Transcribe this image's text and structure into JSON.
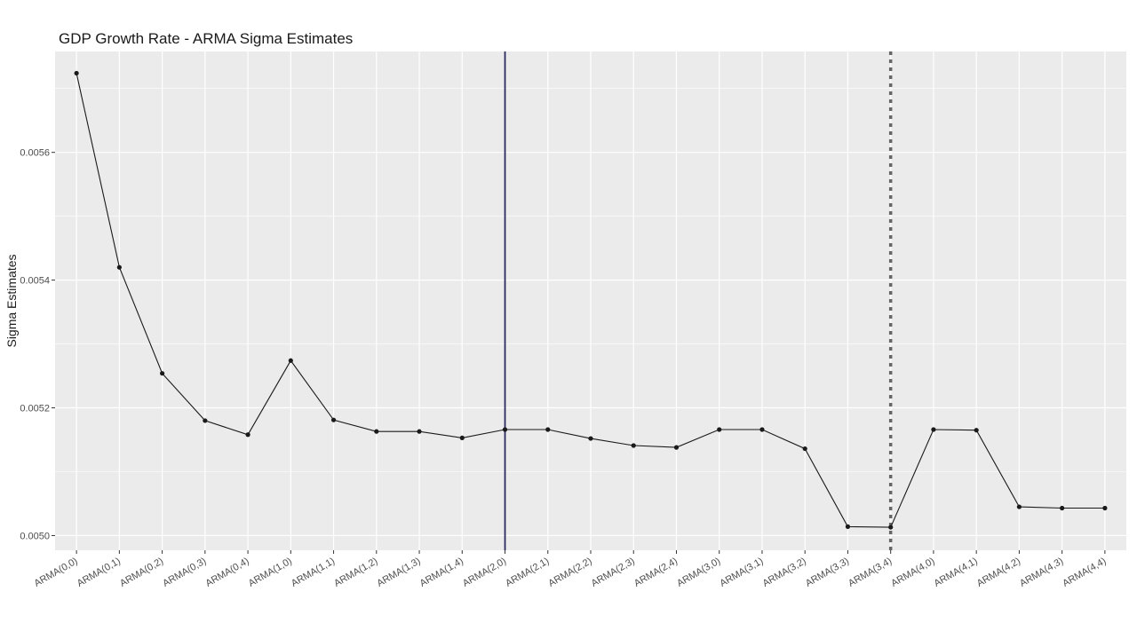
{
  "chart_data": {
    "type": "line",
    "title": "GDP Growth Rate - ARMA Sigma Estimates",
    "xlabel": "",
    "ylabel": "Sigma Estimates",
    "categories": [
      "ARMA(0,0)",
      "ARMA(0,1)",
      "ARMA(0,2)",
      "ARMA(0,3)",
      "ARMA(0,4)",
      "ARMA(1,0)",
      "ARMA(1,1)",
      "ARMA(1,2)",
      "ARMA(1,3)",
      "ARMA(1,4)",
      "ARMA(2,0)",
      "ARMA(2,1)",
      "ARMA(2,2)",
      "ARMA(2,3)",
      "ARMA(2,4)",
      "ARMA(3,0)",
      "ARMA(3,1)",
      "ARMA(3,2)",
      "ARMA(3,3)",
      "ARMA(3,4)",
      "ARMA(4,0)",
      "ARMA(4,1)",
      "ARMA(4,2)",
      "ARMA(4,3)",
      "ARMA(4,4)"
    ],
    "values": [
      0.005724,
      0.00542,
      0.005254,
      0.00518,
      0.005158,
      0.005274,
      0.005181,
      0.005163,
      0.005163,
      0.005153,
      0.005166,
      0.005166,
      0.005152,
      0.005141,
      0.005138,
      0.005166,
      0.005166,
      0.005136,
      0.005014,
      0.005013,
      0.005166,
      0.005165,
      0.005045,
      0.005043,
      0.005043
    ],
    "ylim": [
      0.004977,
      0.005758
    ],
    "yticks": [
      0.005,
      0.0052,
      0.0054,
      0.0056
    ],
    "ytick_labels": [
      "0.0050",
      "0.0052",
      "0.0054",
      "0.0056"
    ],
    "reference_lines": [
      {
        "category": "ARMA(2,0)",
        "style": "solid",
        "color": "#2b2a5e"
      },
      {
        "category": "ARMA(3,4)",
        "style": "dotted",
        "color": "#666666"
      }
    ],
    "grid": true,
    "legend": "none",
    "colors": {
      "panel": "#ebebeb",
      "grid": "#ffffff",
      "line": "#1a1a1a",
      "point": "#1a1a1a"
    }
  }
}
